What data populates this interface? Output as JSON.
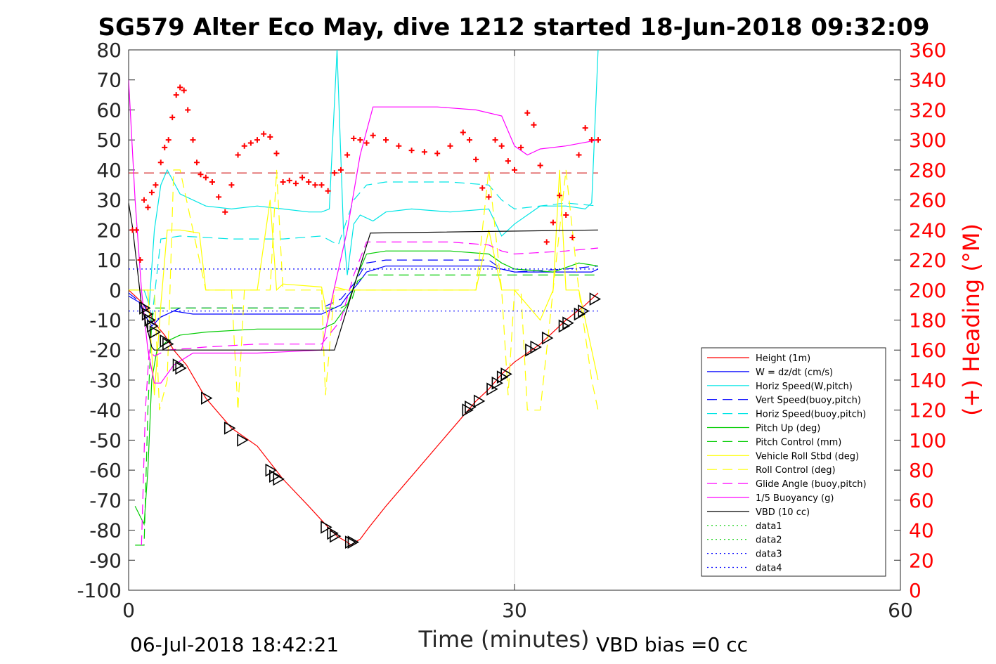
{
  "title": "SG579 Alter Eco May, dive 1212 started 18-Jun-2018 09:32:09",
  "footer_left": "06-Jul-2018 18:42:21",
  "footer_right": "VBD bias =0 cc",
  "chart_data": {
    "type": "line",
    "xlabel": "Time (minutes)",
    "ylabel": "",
    "ylabel_right": "(+) Heading (°M)",
    "xlim": [
      0,
      60
    ],
    "ylim": [
      -100,
      80
    ],
    "ylim_right": [
      0,
      360
    ],
    "x_ticks": [
      0,
      30,
      60
    ],
    "y_ticks": [
      -100,
      -90,
      -80,
      -70,
      -60,
      -50,
      -40,
      -30,
      -20,
      -10,
      0,
      10,
      20,
      30,
      40,
      50,
      60,
      70,
      80
    ],
    "y_ticks_right": [
      0,
      20,
      40,
      60,
      80,
      100,
      120,
      140,
      160,
      180,
      200,
      220,
      240,
      260,
      280,
      300,
      320,
      340,
      360
    ],
    "grid": "x-only",
    "legend_position": "bottom-right",
    "colors": {
      "red": "#ff0000",
      "blue": "#0000ff",
      "cyan": "#00e5e5",
      "green": "#00cc00",
      "yellow": "#ffff00",
      "magenta": "#ff00ff",
      "black": "#000000"
    },
    "series": [
      {
        "name": "Height (1m)",
        "color": "#ff0000",
        "style": "solid",
        "x": [
          0,
          0.5,
          1.0,
          1.4,
          1.8,
          2.2,
          2.8,
          3.5,
          4.5,
          6,
          8,
          10,
          12,
          14,
          15.5,
          16.2,
          17,
          17.3,
          17.6,
          18,
          18.7,
          20,
          22,
          24,
          26,
          27,
          28,
          29,
          30,
          32,
          34,
          35.5,
          36.5
        ],
        "y": [
          0,
          -2,
          -4,
          -6,
          -9,
          -12,
          -15,
          -20,
          -25,
          -36,
          -46,
          -52,
          -63,
          -72,
          -79,
          -82,
          -84,
          -85,
          -84,
          -83,
          -79,
          -72,
          -62,
          -52,
          -42,
          -37,
          -33,
          -28,
          -24,
          -18,
          -10,
          -5,
          -1
        ]
      },
      {
        "name": "W = dz/dt (cm/s)",
        "color": "#0000ff",
        "style": "solid",
        "x": [
          0,
          0.8,
          1.2,
          1.5,
          1.8,
          2.5,
          3.5,
          5,
          8,
          12,
          15,
          15.5,
          16.5,
          17,
          17.8,
          18.5,
          20,
          25,
          28,
          29,
          30,
          33,
          36,
          36.5
        ],
        "y": [
          -2,
          -4,
          -8,
          -10,
          -12,
          -9,
          -7,
          -8,
          -8,
          -8,
          -8,
          -7,
          -5,
          -2,
          2,
          6,
          8,
          8,
          8,
          7,
          6,
          6,
          6,
          7
        ]
      },
      {
        "name": "Horiz Speed(W,pitch)",
        "color": "#00e5e5",
        "style": "solid",
        "x": [
          0,
          1.2,
          1.6,
          2.0,
          2.5,
          3,
          4,
          6,
          8,
          10,
          12,
          14,
          15,
          15.6,
          16.2,
          16.7,
          17,
          17.5,
          18,
          19,
          20,
          22,
          25,
          28,
          29,
          30,
          32,
          34,
          35.5,
          36,
          36.5
        ],
        "y": [
          0,
          0,
          -5,
          20,
          35,
          40,
          32,
          28,
          27,
          28,
          27,
          26,
          26,
          27,
          80,
          20,
          5,
          22,
          25,
          23,
          26,
          27,
          26,
          27,
          18,
          22,
          28,
          28,
          27,
          29,
          80
        ]
      },
      {
        "name": "Vert Speed(buoy,pitch)",
        "color": "#0000ff",
        "style": "dashed",
        "x": [
          0,
          1.2,
          1.8,
          2.5,
          4,
          8,
          12,
          15,
          16.5,
          17.5,
          18.5,
          20,
          25,
          28,
          29,
          30,
          34,
          36.5
        ],
        "y": [
          -1,
          -5,
          -11,
          -9,
          -6,
          -6,
          -6,
          -6,
          -3,
          2,
          9,
          10,
          10,
          10,
          7,
          6,
          7,
          8
        ]
      },
      {
        "name": "Horiz Speed(buoy,pitch)",
        "color": "#00e5e5",
        "style": "dashed",
        "x": [
          1.8,
          2.5,
          4,
          8,
          12,
          15,
          16.3,
          17.5,
          18.5,
          20,
          25,
          28,
          29,
          30,
          34,
          36.5
        ],
        "y": [
          -10,
          17,
          18,
          17,
          17,
          18,
          15,
          30,
          35,
          36,
          36,
          35,
          30,
          27,
          29,
          28
        ]
      },
      {
        "name": "Pitch Up (deg)",
        "color": "#00cc00",
        "style": "solid",
        "x": [
          0.5,
          1.2,
          1.5,
          1.8,
          2.2,
          3,
          4,
          6,
          10,
          15,
          16,
          17,
          17.8,
          18.5,
          20,
          25,
          28,
          29,
          30,
          33,
          35,
          36.5
        ],
        "y": [
          -72,
          -78,
          -60,
          -30,
          -20,
          -17,
          -15,
          -14,
          -13,
          -13,
          -11,
          -5,
          5,
          12,
          13,
          13,
          12,
          9,
          7,
          6,
          9,
          8
        ]
      },
      {
        "name": "Pitch Control (mm)",
        "color": "#00cc00",
        "style": "dashed",
        "x": [
          0.5,
          1.2,
          1.5,
          1.8,
          2.0,
          4,
          8,
          12,
          15,
          15.8,
          16.5,
          17.3,
          17.8,
          18.5,
          20,
          25,
          28,
          29,
          34,
          36.5
        ],
        "y": [
          -85,
          -85,
          -40,
          -10,
          -6,
          -6,
          -6,
          -6,
          -6,
          -6,
          -6,
          -4,
          3,
          5,
          5,
          5,
          5,
          5,
          5,
          5
        ]
      },
      {
        "name": "Vehicle Roll Stbd (deg)",
        "color": "#ffff00",
        "style": "solid",
        "x": [
          0,
          1.5,
          2.0,
          2.5,
          3.0,
          4,
          5.5,
          6,
          10,
          11,
          11.5,
          12,
          15,
          15.5,
          16,
          17,
          20,
          25,
          26,
          27,
          28,
          29,
          30,
          31,
          32,
          33,
          33.5,
          34,
          35,
          36,
          36.5
        ],
        "y": [
          0,
          0,
          -35,
          -5,
          20,
          20,
          19,
          0,
          0,
          30,
          0,
          2,
          1,
          -10,
          1,
          0,
          0,
          0,
          0,
          0,
          20,
          0,
          0,
          -5,
          -10,
          0,
          40,
          0,
          0,
          -20,
          -30
        ]
      },
      {
        "name": "Roll Control (deg)",
        "color": "#ffff00",
        "style": "dashed",
        "x": [
          0,
          2,
          2.4,
          3,
          3.5,
          4,
          6,
          8,
          8.5,
          9,
          11,
          11.5,
          12,
          15,
          15.3,
          16,
          17,
          19,
          20,
          25,
          26,
          27,
          28,
          29,
          29.5,
          30,
          30.5,
          31,
          32,
          33,
          34,
          35,
          36,
          36.5
        ],
        "y": [
          0,
          0,
          -40,
          -30,
          40,
          40,
          0,
          0,
          -40,
          0,
          0,
          40,
          0,
          0,
          -35,
          0,
          0,
          0,
          0,
          0,
          0,
          0,
          40,
          0,
          -35,
          0,
          0,
          -40,
          -40,
          0,
          40,
          0,
          -30,
          -40
        ]
      },
      {
        "name": "Glide Angle (buoy,pitch)",
        "color": "#ff00ff",
        "style": "dashed",
        "x": [
          1.0,
          1.3,
          1.6,
          2.0,
          3,
          6,
          10,
          15,
          16.5,
          17.5,
          18.5,
          20,
          25,
          28,
          29,
          30,
          34,
          36.5
        ],
        "y": [
          -85,
          -40,
          -20,
          -22,
          -20,
          -19,
          -18,
          -18,
          -10,
          5,
          16,
          16,
          16,
          15,
          13,
          12,
          13,
          14
        ]
      },
      {
        "name": "1/5 Buoyancy (g)",
        "color": "#ff00ff",
        "style": "solid",
        "x": [
          0,
          0.5,
          1.0,
          1.5,
          2.0,
          2.5,
          3.5,
          5,
          10,
          15,
          15.8,
          17,
          18,
          19,
          24,
          27,
          29,
          30,
          31,
          32,
          34,
          36.5
        ],
        "y": [
          70,
          30,
          0,
          -20,
          -31,
          -31,
          -25,
          -21,
          -21,
          -20,
          -3,
          20,
          45,
          61,
          61,
          60,
          58,
          48,
          45,
          47,
          48,
          50
        ]
      },
      {
        "name": "VBD (10 cc)",
        "color": "#000000",
        "style": "solid",
        "x": [
          0,
          0.3,
          1.0,
          1.8,
          2.0,
          16.0,
          18.8,
          19,
          36.5
        ],
        "y": [
          29,
          21,
          -5,
          -19,
          -20,
          -20,
          19,
          19,
          20
        ]
      },
      {
        "name": "data1",
        "color": "#00cc00",
        "style": "dotted",
        "x": [],
        "y": []
      },
      {
        "name": "data2",
        "color": "#00cc00",
        "style": "dotted",
        "x": [],
        "y": []
      },
      {
        "name": "data3",
        "color": "#0000ff",
        "style": "dotted",
        "x": [
          0,
          36.5
        ],
        "y": [
          7,
          7
        ]
      },
      {
        "name": "data4",
        "color": "#0000ff",
        "style": "dotted",
        "x": [
          0,
          36.5
        ],
        "y": [
          -7,
          -7
        ]
      }
    ],
    "reference_lines": [
      {
        "axis": "right",
        "value": 278,
        "color": "#cc0000",
        "style": "dashed"
      }
    ],
    "heading_points": {
      "axis": "right",
      "marker": "+",
      "color": "#ff0000",
      "x": [
        0.3,
        0.6,
        0.9,
        1.2,
        1.5,
        1.8,
        2.1,
        2.5,
        2.8,
        3.1,
        3.4,
        3.7,
        4.0,
        4.3,
        4.6,
        5.0,
        5.3,
        5.6,
        6,
        6.5,
        7,
        7.5,
        8,
        8.5,
        9,
        9.5,
        10,
        10.5,
        11,
        11.5,
        12,
        12.5,
        13,
        13.5,
        14,
        14.5,
        15,
        15.5,
        16,
        16.5,
        17,
        17.5,
        18,
        18.5,
        19,
        20,
        21,
        22,
        23,
        24,
        25,
        26,
        26.5,
        27,
        27.5,
        28,
        28.5,
        29,
        29.5,
        30,
        30.5,
        31,
        31.5,
        32,
        32.5,
        33,
        33.5,
        34,
        34.5,
        35,
        35.5,
        36,
        36.5
      ],
      "y": [
        240,
        240,
        220,
        260,
        255,
        265,
        270,
        285,
        295,
        300,
        315,
        330,
        335,
        333,
        320,
        300,
        285,
        277,
        275,
        272,
        262,
        252,
        270,
        290,
        296,
        298,
        300,
        304,
        302,
        291,
        272,
        273,
        271,
        275,
        272,
        270,
        270,
        266,
        278,
        280,
        290,
        301,
        300,
        298,
        303,
        300,
        296,
        293,
        292,
        291,
        296,
        305,
        300,
        287,
        268,
        262,
        300,
        296,
        286,
        280,
        295,
        318,
        310,
        283,
        232,
        245,
        263,
        250,
        235,
        290,
        308,
        300,
        300
      ]
    },
    "triangle_markers": {
      "series": "Height (1m)",
      "x": [
        1.2,
        1.4,
        1.6,
        1.8,
        2.0,
        2.8,
        3.0,
        3.8,
        4.0,
        6.0,
        7.8,
        8.8,
        11.0,
        11.3,
        11.6,
        15.3,
        15.8,
        16.0,
        17.2,
        17.4,
        26.3,
        26.5,
        27.2,
        28.2,
        28.6,
        29.0,
        29.3,
        31.2,
        31.6,
        32.5,
        33.8,
        34.1,
        35.0,
        35.3,
        36.2
      ],
      "y": [
        -6,
        -8,
        -10,
        -12,
        -14,
        -17,
        -18,
        -25,
        -26,
        -36,
        -46,
        -50,
        -60,
        -62,
        -63,
        -79,
        -81,
        -82,
        -84,
        -84,
        -40,
        -39,
        -37,
        -33,
        -31,
        -29,
        -28,
        -20,
        -19,
        -16,
        -12,
        -11,
        -8,
        -7,
        -3
      ]
    }
  }
}
